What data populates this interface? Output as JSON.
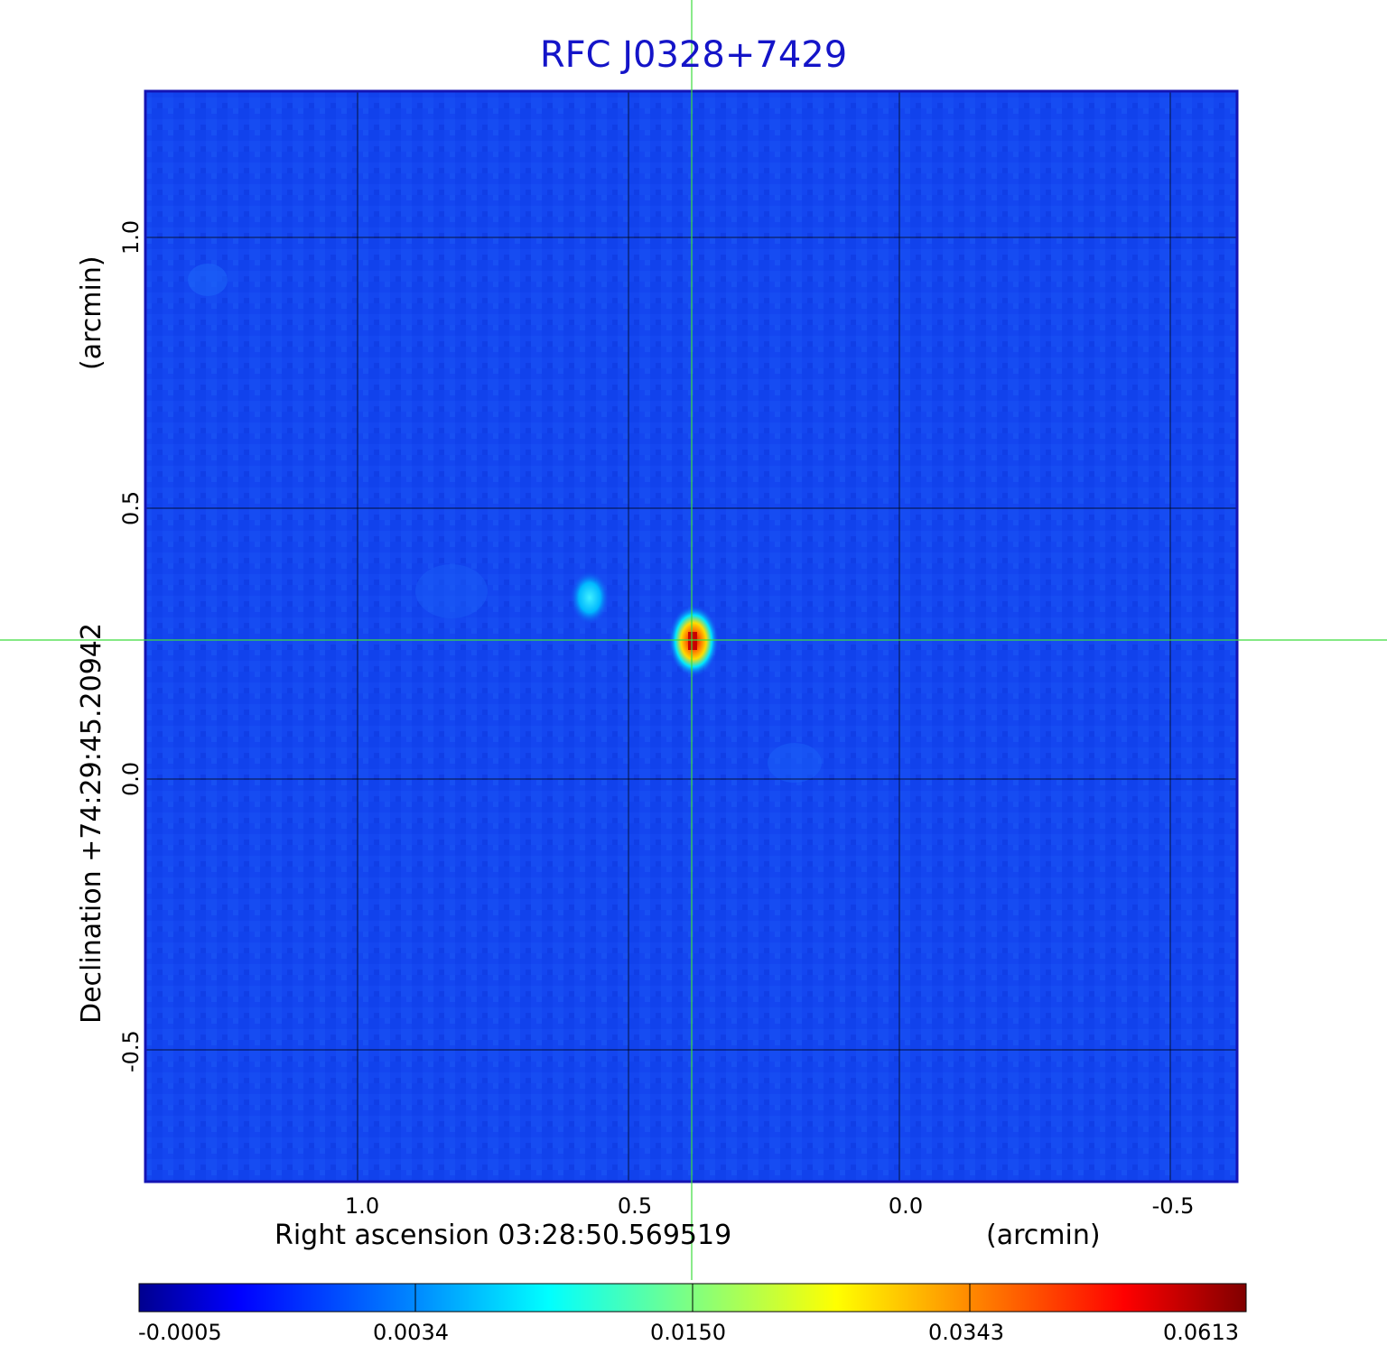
{
  "title": "RFC J0328+7429",
  "x_axis": {
    "label": "Right ascension  03:28:50.569519",
    "unit": "(arcmin)",
    "ticks": [
      "1.0",
      "0.5",
      "0.0",
      "-0.5"
    ]
  },
  "y_axis": {
    "label": "Declination  +74:29:45.20942",
    "unit": "(arcmin)",
    "ticks": [
      "1.0",
      "0.5",
      "0.0",
      "-0.5"
    ]
  },
  "colorbar": {
    "ticks": [
      "-0.0005",
      "0.0034",
      "0.0150",
      "0.0343",
      "0.0613"
    ],
    "colors": [
      "#00008f",
      "#0000ff",
      "#0080ff",
      "#00ffff",
      "#80ff80",
      "#ffff00",
      "#ff8000",
      "#ff0000",
      "#800000"
    ]
  },
  "colors": {
    "title": "#1414c8",
    "frame": "#1414b4",
    "background_field": "#1446f0",
    "crosshair": "#3cdc3c",
    "grid": "#000000"
  }
}
